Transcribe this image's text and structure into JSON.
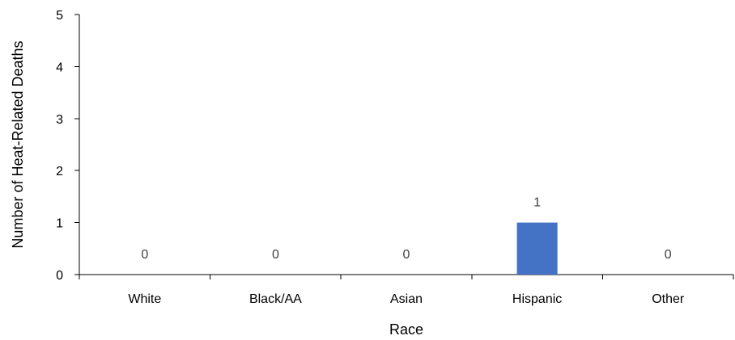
{
  "chart_data": {
    "type": "bar",
    "title": "",
    "xlabel": "Race",
    "ylabel": "Number of Heat-Related Deaths",
    "categories": [
      "White",
      "Black/AA",
      "Asian",
      "Hispanic",
      "Other"
    ],
    "values": [
      0,
      0,
      0,
      1,
      0
    ],
    "data_labels": [
      "0",
      "0",
      "0",
      "1",
      "0"
    ],
    "ylim": [
      0,
      5
    ],
    "yticks": [
      0,
      1,
      2,
      3,
      4,
      5
    ],
    "ytick_labels": [
      "0",
      "1",
      "2",
      "3",
      "4",
      "5"
    ],
    "grid": false,
    "legend": "none",
    "bar_color": "#4472C4"
  }
}
